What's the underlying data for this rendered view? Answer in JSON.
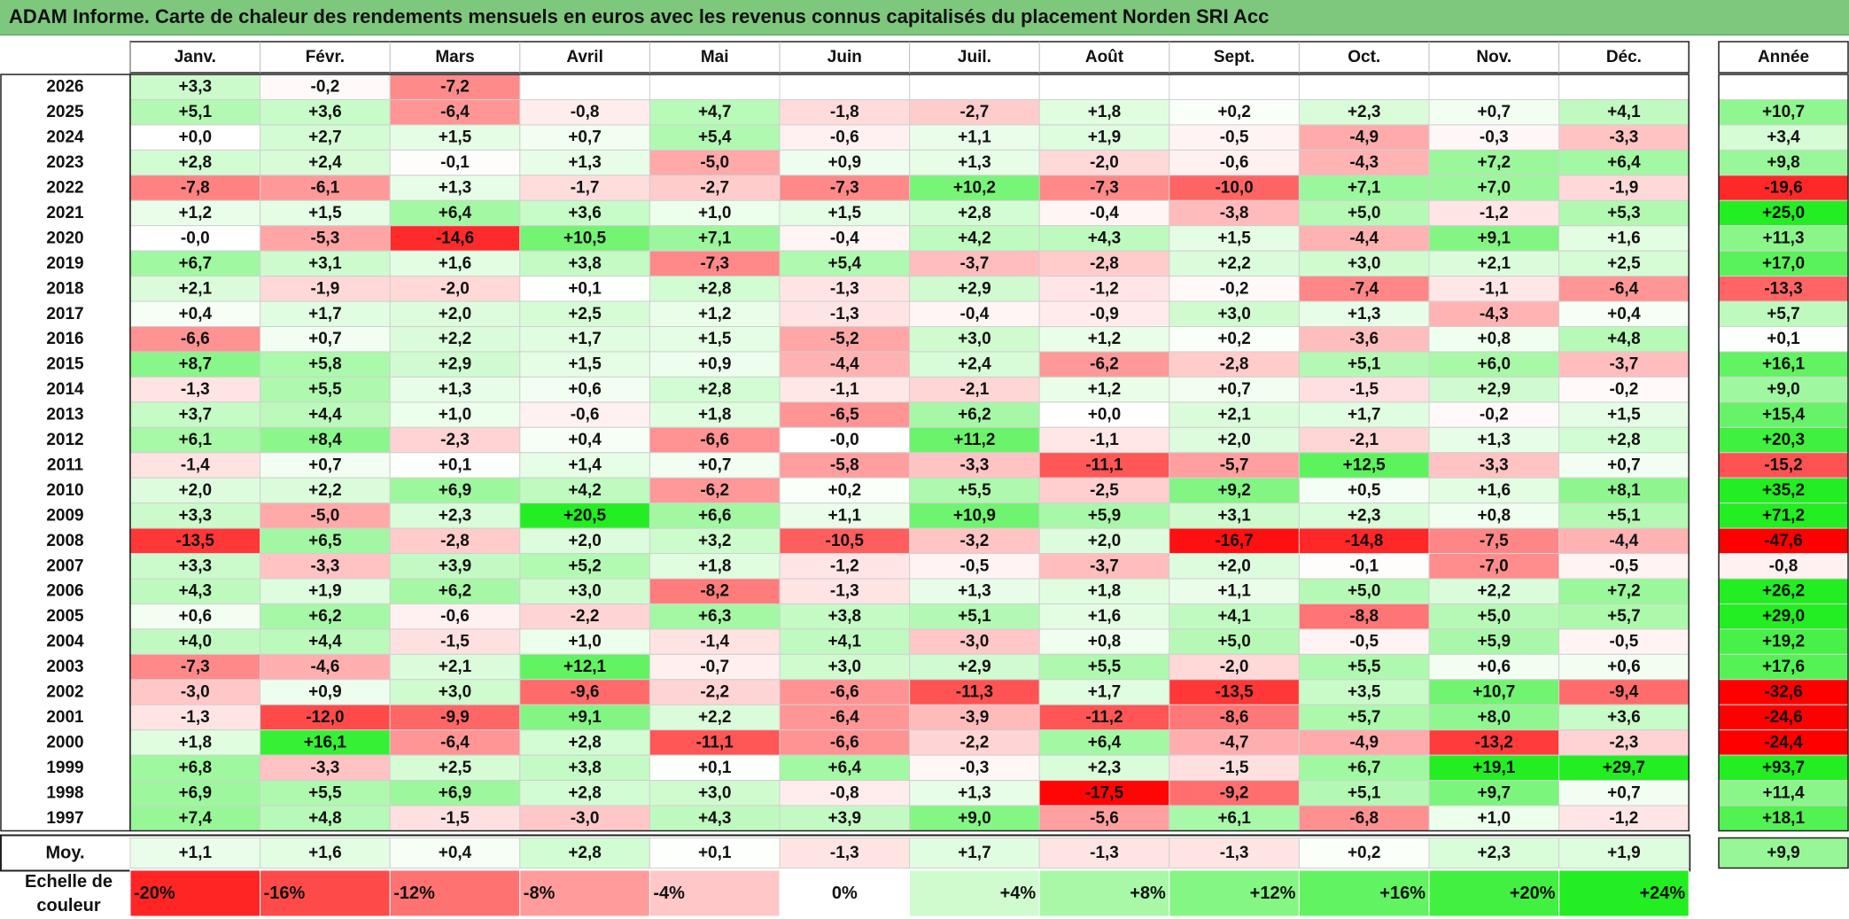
{
  "title": "ADAM Informe. Carte de chaleur des rendements mensuels en euros avec les revenus connus capitalisés du placement Norden SRI Acc",
  "colors": {
    "title_bar": "#7ec87e",
    "max_red": "#ff0000",
    "max_green": "#22ee22",
    "neutral": "#ffffff"
  },
  "chart_data": {
    "type": "heatmap",
    "title": "ADAM Informe. Carte de chaleur des rendements mensuels en euros avec les revenus connus capitalisés du placement Norden SRI Acc",
    "columns": [
      "Janv.",
      "Févr.",
      "Mars",
      "Avril",
      "Mai",
      "Juin",
      "Juil.",
      "Août",
      "Sept.",
      "Oct.",
      "Nov.",
      "Déc."
    ],
    "year_header": "Année",
    "rows": [
      {
        "year": "2026",
        "values": [
          "+3,3",
          "-0,2",
          "-7,2",
          "",
          "",
          "",
          "",
          "",
          "",
          "",
          "",
          ""
        ],
        "annual": ""
      },
      {
        "year": "2025",
        "values": [
          "+5,1",
          "+3,6",
          "-6,4",
          "-0,8",
          "+4,7",
          "-1,8",
          "-2,7",
          "+1,8",
          "+0,2",
          "+2,3",
          "+0,7",
          "+4,1"
        ],
        "annual": "+10,7"
      },
      {
        "year": "2024",
        "values": [
          "+0,0",
          "+2,7",
          "+1,5",
          "+0,7",
          "+5,4",
          "-0,6",
          "+1,1",
          "+1,9",
          "-0,5",
          "-4,9",
          "-0,3",
          "-3,3"
        ],
        "annual": "+3,4"
      },
      {
        "year": "2023",
        "values": [
          "+2,8",
          "+2,4",
          "-0,1",
          "+1,3",
          "-5,0",
          "+0,9",
          "+1,3",
          "-2,0",
          "-0,6",
          "-4,3",
          "+7,2",
          "+6,4"
        ],
        "annual": "+9,8"
      },
      {
        "year": "2022",
        "values": [
          "-7,8",
          "-6,1",
          "+1,3",
          "-1,7",
          "-2,7",
          "-7,3",
          "+10,2",
          "-7,3",
          "-10,0",
          "+7,1",
          "+7,0",
          "-1,9"
        ],
        "annual": "-19,6"
      },
      {
        "year": "2021",
        "values": [
          "+1,2",
          "+1,5",
          "+6,4",
          "+3,6",
          "+1,0",
          "+1,5",
          "+2,8",
          "-0,4",
          "-3,8",
          "+5,0",
          "-1,2",
          "+5,3"
        ],
        "annual": "+25,0"
      },
      {
        "year": "2020",
        "values": [
          "-0,0",
          "-5,3",
          "-14,6",
          "+10,5",
          "+7,1",
          "-0,4",
          "+4,2",
          "+4,3",
          "+1,5",
          "-4,4",
          "+9,1",
          "+1,6"
        ],
        "annual": "+11,3"
      },
      {
        "year": "2019",
        "values": [
          "+6,7",
          "+3,1",
          "+1,6",
          "+3,8",
          "-7,3",
          "+5,4",
          "-3,7",
          "-2,8",
          "+2,2",
          "+3,0",
          "+2,1",
          "+2,5"
        ],
        "annual": "+17,0"
      },
      {
        "year": "2018",
        "values": [
          "+2,1",
          "-1,9",
          "-2,0",
          "+0,1",
          "+2,8",
          "-1,3",
          "+2,9",
          "-1,2",
          "-0,2",
          "-7,4",
          "-1,1",
          "-6,4"
        ],
        "annual": "-13,3"
      },
      {
        "year": "2017",
        "values": [
          "+0,4",
          "+1,7",
          "+2,0",
          "+2,5",
          "+1,2",
          "-1,3",
          "-0,4",
          "-0,9",
          "+3,0",
          "+1,3",
          "-4,3",
          "+0,4"
        ],
        "annual": "+5,7"
      },
      {
        "year": "2016",
        "values": [
          "-6,6",
          "+0,7",
          "+2,2",
          "+1,7",
          "+1,5",
          "-5,2",
          "+3,0",
          "+1,2",
          "+0,2",
          "-3,6",
          "+0,8",
          "+4,8"
        ],
        "annual": "+0,1"
      },
      {
        "year": "2015",
        "values": [
          "+8,7",
          "+5,8",
          "+2,9",
          "+1,5",
          "+0,9",
          "-4,4",
          "+2,4",
          "-6,2",
          "-2,8",
          "+5,1",
          "+6,0",
          "-3,7"
        ],
        "annual": "+16,1"
      },
      {
        "year": "2014",
        "values": [
          "-1,3",
          "+5,5",
          "+1,3",
          "+0,6",
          "+2,8",
          "-1,1",
          "-2,1",
          "+1,2",
          "+0,7",
          "-1,5",
          "+2,9",
          "-0,2"
        ],
        "annual": "+9,0"
      },
      {
        "year": "2013",
        "values": [
          "+3,7",
          "+4,4",
          "+1,0",
          "-0,6",
          "+1,8",
          "-6,5",
          "+6,2",
          "+0,0",
          "+2,1",
          "+1,7",
          "-0,2",
          "+1,5"
        ],
        "annual": "+15,4"
      },
      {
        "year": "2012",
        "values": [
          "+6,1",
          "+8,4",
          "-2,3",
          "+0,4",
          "-6,6",
          "-0,0",
          "+11,2",
          "-1,1",
          "+2,0",
          "-2,1",
          "+1,3",
          "+2,8"
        ],
        "annual": "+20,3"
      },
      {
        "year": "2011",
        "values": [
          "-1,4",
          "+0,7",
          "+0,1",
          "+1,4",
          "+0,7",
          "-5,8",
          "-3,3",
          "-11,1",
          "-5,7",
          "+12,5",
          "-3,3",
          "+0,7"
        ],
        "annual": "-15,2"
      },
      {
        "year": "2010",
        "values": [
          "+2,0",
          "+2,2",
          "+6,9",
          "+4,2",
          "-6,2",
          "+0,2",
          "+5,5",
          "-2,5",
          "+9,2",
          "+0,5",
          "+1,6",
          "+8,1"
        ],
        "annual": "+35,2"
      },
      {
        "year": "2009",
        "values": [
          "+3,3",
          "-5,0",
          "+2,3",
          "+20,5",
          "+6,6",
          "+1,1",
          "+10,9",
          "+5,9",
          "+3,1",
          "+2,3",
          "+0,8",
          "+5,1"
        ],
        "annual": "+71,2"
      },
      {
        "year": "2008",
        "values": [
          "-13,5",
          "+6,5",
          "-2,8",
          "+2,0",
          "+3,2",
          "-10,5",
          "-3,2",
          "+2,0",
          "-16,7",
          "-14,8",
          "-7,5",
          "-4,4"
        ],
        "annual": "-47,6"
      },
      {
        "year": "2007",
        "values": [
          "+3,3",
          "-3,3",
          "+3,9",
          "+5,2",
          "+1,8",
          "-1,2",
          "-0,5",
          "-3,7",
          "+2,0",
          "-0,1",
          "-7,0",
          "-0,5"
        ],
        "annual": "-0,8"
      },
      {
        "year": "2006",
        "values": [
          "+4,3",
          "+1,9",
          "+6,2",
          "+3,0",
          "-8,2",
          "-1,3",
          "+1,3",
          "+1,8",
          "+1,1",
          "+5,0",
          "+2,2",
          "+7,2"
        ],
        "annual": "+26,2"
      },
      {
        "year": "2005",
        "values": [
          "+0,6",
          "+6,2",
          "-0,6",
          "-2,2",
          "+6,3",
          "+3,8",
          "+5,1",
          "+1,6",
          "+4,1",
          "-8,8",
          "+5,0",
          "+5,7"
        ],
        "annual": "+29,0"
      },
      {
        "year": "2004",
        "values": [
          "+4,0",
          "+4,4",
          "-1,5",
          "+1,0",
          "-1,4",
          "+4,1",
          "-3,0",
          "+0,8",
          "+5,0",
          "-0,5",
          "+5,9",
          "-0,5"
        ],
        "annual": "+19,2"
      },
      {
        "year": "2003",
        "values": [
          "-7,3",
          "-4,6",
          "+2,1",
          "+12,1",
          "-0,7",
          "+3,0",
          "+2,9",
          "+5,5",
          "-2,0",
          "+5,5",
          "+0,6",
          "+0,6"
        ],
        "annual": "+17,6"
      },
      {
        "year": "2002",
        "values": [
          "-3,0",
          "+0,9",
          "+3,0",
          "-9,6",
          "-2,2",
          "-6,6",
          "-11,3",
          "+1,7",
          "-13,5",
          "+3,5",
          "+10,7",
          "-9,4"
        ],
        "annual": "-32,6"
      },
      {
        "year": "2001",
        "values": [
          "-1,3",
          "-12,0",
          "-9,9",
          "+9,1",
          "+2,2",
          "-6,4",
          "-3,9",
          "-11,2",
          "-8,6",
          "+5,7",
          "+8,0",
          "+3,6"
        ],
        "annual": "-24,6"
      },
      {
        "year": "2000",
        "values": [
          "+1,8",
          "+16,1",
          "-6,4",
          "+2,8",
          "-11,1",
          "-6,6",
          "-2,2",
          "+6,4",
          "-4,7",
          "-4,9",
          "-13,2",
          "-2,3"
        ],
        "annual": "-24,4"
      },
      {
        "year": "1999",
        "values": [
          "+6,8",
          "-3,3",
          "+2,5",
          "+3,8",
          "+0,1",
          "+6,4",
          "-0,3",
          "+2,3",
          "-1,5",
          "+6,7",
          "+19,1",
          "+29,7"
        ],
        "annual": "+93,7"
      },
      {
        "year": "1998",
        "values": [
          "+6,9",
          "+5,5",
          "+6,9",
          "+2,8",
          "+3,0",
          "-0,8",
          "+1,3",
          "-17,5",
          "-9,2",
          "+5,1",
          "+9,7",
          "+0,7"
        ],
        "annual": "+11,4"
      },
      {
        "year": "1997",
        "values": [
          "+7,4",
          "+4,8",
          "-1,5",
          "-3,0",
          "+4,3",
          "+3,9",
          "+9,0",
          "-5,6",
          "+6,1",
          "-6,8",
          "+1,0",
          "-1,2"
        ],
        "annual": "+18,1"
      }
    ],
    "average": {
      "label": "Moy.",
      "values": [
        "+1,1",
        "+1,6",
        "+0,4",
        "+2,8",
        "+0,1",
        "-1,3",
        "+1,7",
        "-1,3",
        "-1,3",
        "+0,2",
        "+2,3",
        "+1,9"
      ],
      "annual": "+9,9"
    },
    "scale": {
      "label_line1": "Echelle de",
      "label_line2": "couleur",
      "stops": [
        {
          "label": "-20%",
          "value": -20
        },
        {
          "label": "-16%",
          "value": -16
        },
        {
          "label": "-12%",
          "value": -12
        },
        {
          "label": "-8%",
          "value": -8
        },
        {
          "label": "-4%",
          "value": -4
        },
        {
          "label": "0%",
          "value": 0
        },
        {
          "label": "+4%",
          "value": 4
        },
        {
          "label": "+8%",
          "value": 8
        },
        {
          "label": "+12%",
          "value": 12
        },
        {
          "label": "+16%",
          "value": 16
        },
        {
          "label": "+20%",
          "value": 20
        },
        {
          "label": "+24%",
          "value": 24
        }
      ]
    }
  }
}
